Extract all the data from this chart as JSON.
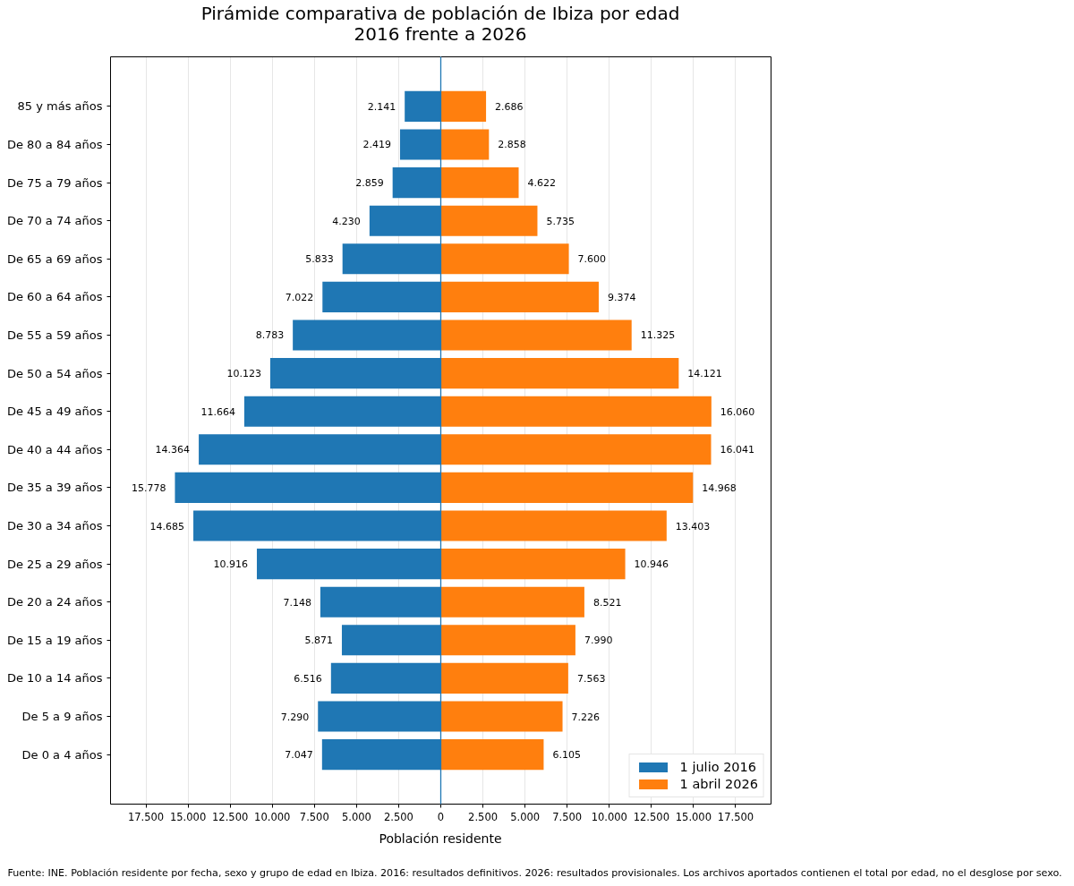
{
  "chart_data": [
    {
      "type": "bar",
      "orientation": "horizontal",
      "title": "Pirámide comparativa de población de Ibiza por edad\n2016 frente a 2026",
      "xlabel": "Población residente",
      "categories": [
        "85 y más años",
        "De 80 a 84 años",
        "De 75 a 79 años",
        "De 70 a 74 años",
        "De 65 a 69 años",
        "De 60 a 64 años",
        "De 55 a 59 años",
        "De 50 a 54 años",
        "De 45 a 49 años",
        "De 40 a 44 años",
        "De 35 a 39 años",
        "De 30 a 34 años",
        "De 25 a 29 años",
        "De 20 a 24 años",
        "De 15 a 19 años",
        "De 10 a 14 años",
        "De 5 a 9 años",
        "De 0 a 4 años"
      ],
      "series": [
        {
          "name": "1 julio 2016",
          "color": "#1f77b4",
          "values": [
            2141,
            2419,
            2859,
            4230,
            5833,
            7022,
            8783,
            10123,
            11664,
            14364,
            15778,
            14685,
            10916,
            7148,
            5871,
            6516,
            7290,
            7047
          ],
          "value_labels": [
            "2.141",
            "2.419",
            "2.859",
            "4.230",
            "5.833",
            "7.022",
            "8.783",
            "10.123",
            "11.664",
            "14.364",
            "15.778",
            "14.685",
            "10.916",
            "7.148",
            "5.871",
            "6.516",
            "7.290",
            "7.047"
          ]
        }
      ],
      "xlim": [
        19600,
        0
      ],
      "xticks": [
        {
          "value": 17500,
          "label": "17.500"
        },
        {
          "value": 15000,
          "label": "15.000"
        },
        {
          "value": 12500,
          "label": "12.500"
        },
        {
          "value": 10000,
          "label": "10.000"
        },
        {
          "value": 7500,
          "label": "7.500"
        },
        {
          "value": 5000,
          "label": "5.000"
        },
        {
          "value": 2500,
          "label": "2.500"
        }
      ],
      "grid": "x",
      "annotations": [
        "Fuente: INE. Población residente por fecha, sexo y grupo de edad en Ibiza. 2016: resultados definitivos. 2026: resultados provisionales. Los archivos aportados contienen el total por edad, no el desglose por sexo."
      ]
    },
    {
      "type": "bar",
      "orientation": "horizontal",
      "tick_labels": "x",
      "categories": [
        null,
        null,
        null,
        null,
        null,
        null,
        null,
        null,
        null,
        null,
        null,
        null,
        null,
        null,
        null,
        null,
        null,
        null
      ],
      "series": [
        {
          "name": "1 abril 2026",
          "color": "#ff7f0e",
          "values": [
            2686,
            2858,
            4622,
            5735,
            7600,
            9374,
            11325,
            14121,
            16060,
            16041,
            14968,
            13403,
            10946,
            8521,
            7990,
            7563,
            7226,
            6105
          ],
          "value_labels": [
            "2.686",
            "2.858",
            "4.622",
            "5.735",
            "7.600",
            "9.374",
            "11.325",
            "14.121",
            "16.060",
            "16.041",
            "14.968",
            "13.403",
            "10.946",
            "8.521",
            "7.990",
            "7.563",
            "7.226",
            "6.105"
          ]
        }
      ],
      "xlim": [
        0,
        19600
      ],
      "xticks": [
        0,
        {
          "value": 2500,
          "label": "2.500"
        },
        {
          "value": 5000,
          "label": "5.000"
        },
        {
          "value": 7500,
          "label": "7.500"
        },
        {
          "value": 10000,
          "label": "10.000"
        },
        {
          "value": 12500,
          "label": "12.500"
        },
        {
          "value": 15000,
          "label": "15.000"
        },
        {
          "value": 17500,
          "label": "17.500"
        }
      ],
      "grid": "x",
      "legend": "bottom right"
    }
  ]
}
